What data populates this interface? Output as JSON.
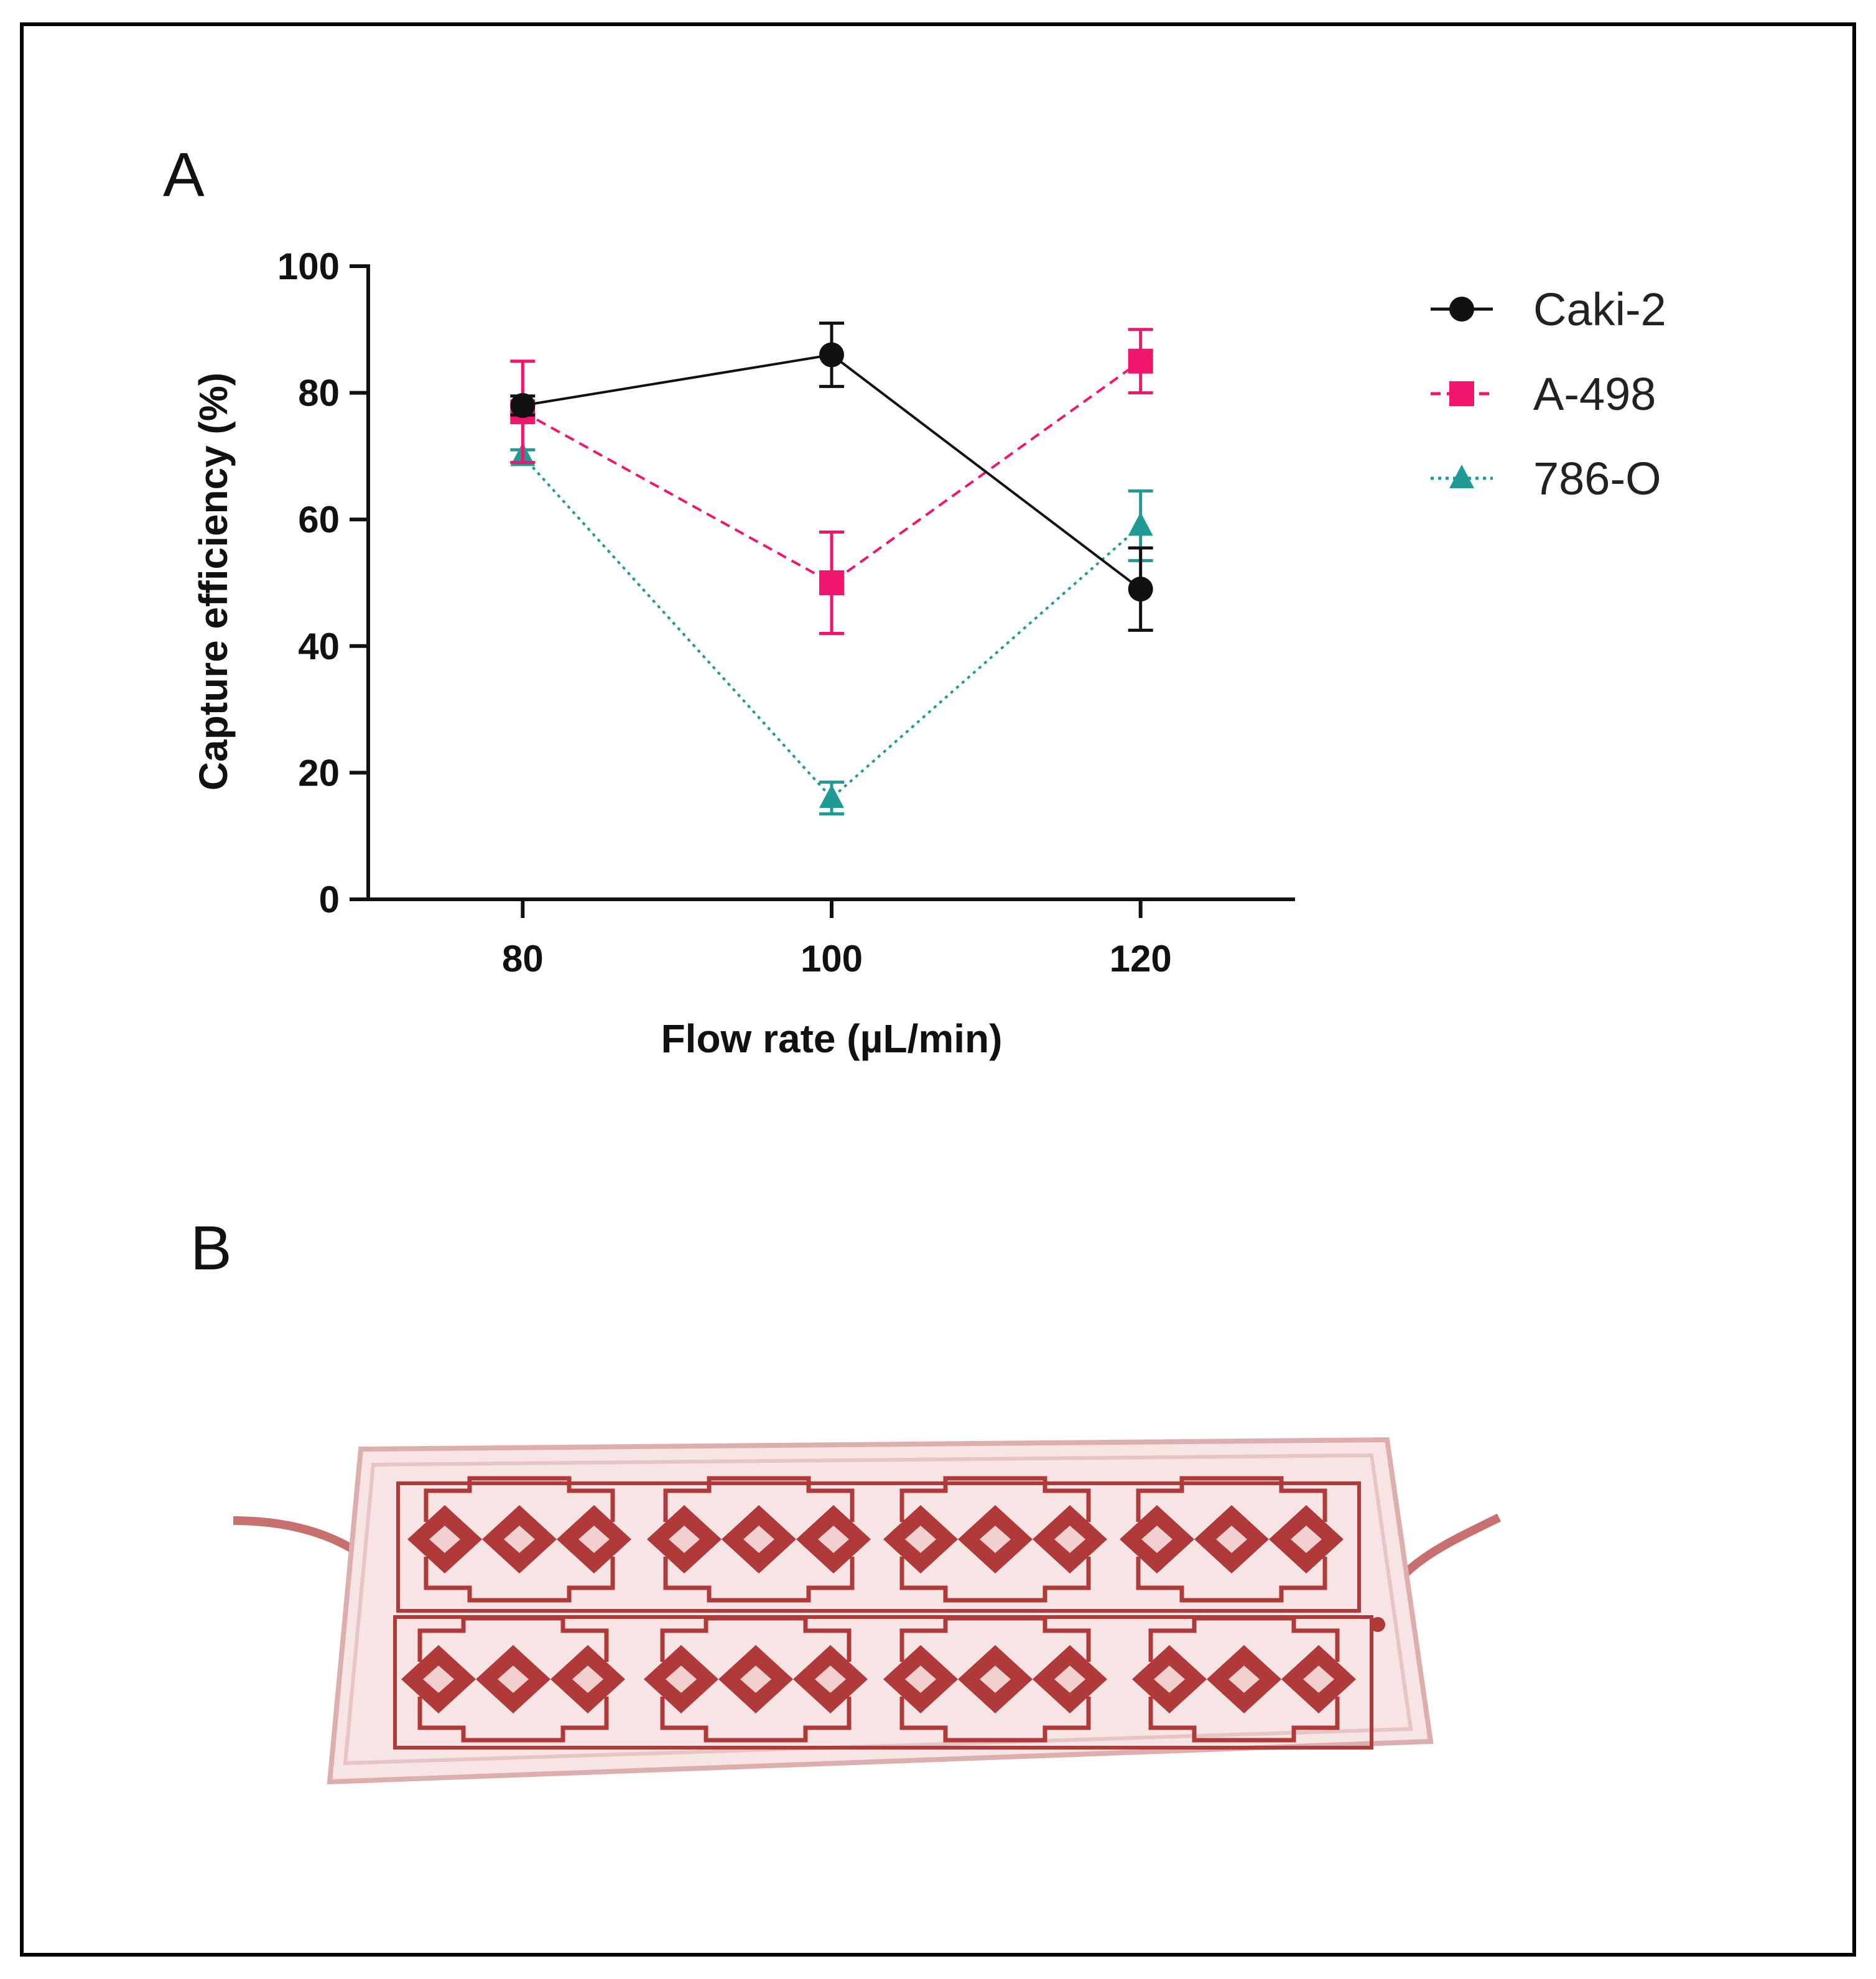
{
  "panels": {
    "a_label": "A",
    "b_label": "B"
  },
  "colors": {
    "caki2": "#111111",
    "a498": "#f0166e",
    "o786": "#1f9a95",
    "device": "#b03a3a",
    "device_light": "#e9bcbc"
  },
  "chart_data": {
    "type": "line",
    "title": "",
    "xlabel": "Flow rate (µL/min)",
    "ylabel": "Capture efficiency (%)",
    "x": [
      80,
      100,
      120
    ],
    "xticks": [
      "80",
      "100",
      "120"
    ],
    "xlim": [
      70,
      130
    ],
    "ylim": [
      0,
      100
    ],
    "yticks": [
      "0",
      "20",
      "40",
      "60",
      "80",
      "100"
    ],
    "legend_position": "right",
    "series": [
      {
        "name": "Caki-2",
        "marker": "circle",
        "line": "solid",
        "color": "#111111",
        "values": [
          78,
          86,
          49
        ],
        "err": [
          1.5,
          5,
          6.5
        ]
      },
      {
        "name": "A-498",
        "marker": "square",
        "line": "dashed",
        "color": "#f0166e",
        "values": [
          77,
          50,
          85
        ],
        "err": [
          8,
          8,
          5
        ]
      },
      {
        "name": "786-O",
        "marker": "triangle",
        "line": "dotted",
        "color": "#1f9a95",
        "values": [
          70,
          16,
          59
        ],
        "err": [
          1,
          2.5,
          5.5
        ]
      }
    ]
  },
  "device": {
    "image_name": "microfluidic chip photograph"
  }
}
